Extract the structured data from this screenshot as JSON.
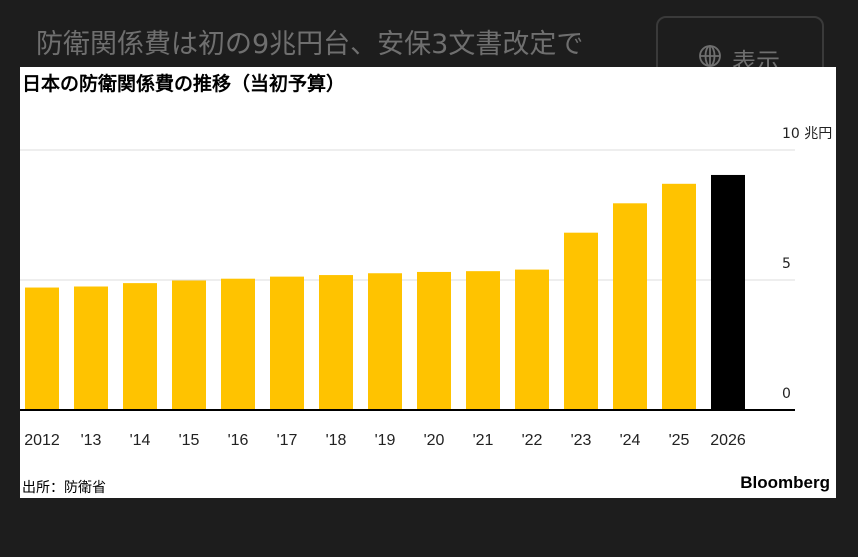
{
  "page": {
    "headline": "防衛関係費は初の9兆円台、安保3文書改定で",
    "display_button": {
      "label": "表示",
      "icon": "globe-icon"
    }
  },
  "chart_title": "日本の防衛関係費の推移（当初予算）",
  "source": "出所：防衛省",
  "brand": "Bloomberg",
  "colors": {
    "bar": "#FFC300",
    "highlight": "#000000",
    "grid": "#dcdcdc",
    "axis": "#000000"
  },
  "chart_data": {
    "type": "bar",
    "title": "日本の防衛関係費の推移（当初予算）",
    "categories": [
      "2012",
      "'13",
      "'14",
      "'15",
      "'16",
      "'17",
      "'18",
      "'19",
      "'20",
      "'21",
      "'22",
      "'23",
      "'24",
      "'25",
      "2026"
    ],
    "values": [
      4.71,
      4.75,
      4.88,
      4.98,
      5.05,
      5.13,
      5.19,
      5.26,
      5.31,
      5.34,
      5.4,
      6.82,
      7.95,
      8.7,
      9.04
    ],
    "highlight_index": 14,
    "y_ticks": [
      {
        "value": 10,
        "label": "10 兆円"
      },
      {
        "value": 5,
        "label": "5"
      },
      {
        "value": 0,
        "label": "0"
      }
    ],
    "ylim": [
      0,
      10
    ],
    "unit": "兆円",
    "grid": true,
    "y_axis_side": "right"
  }
}
